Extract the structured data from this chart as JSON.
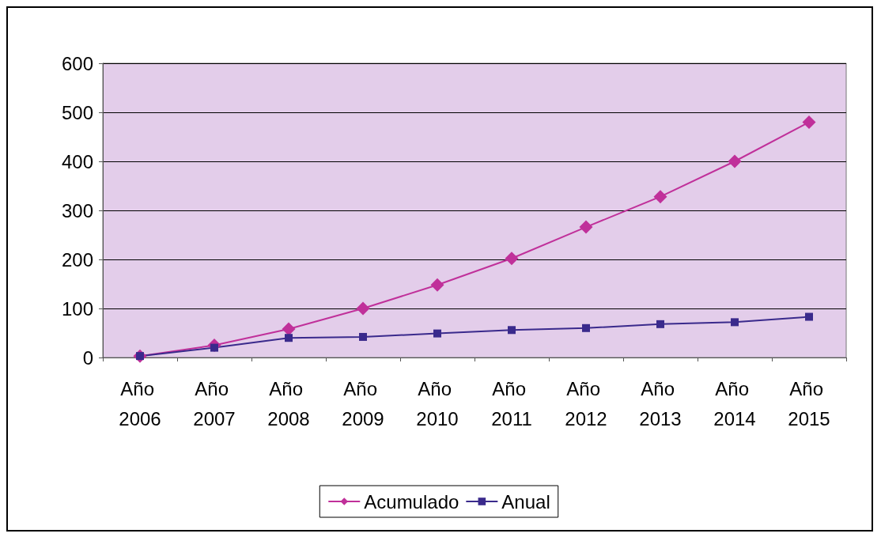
{
  "chart_data": {
    "type": "line",
    "categories": [
      "Año 2006",
      "Año 2007",
      "Año 2008",
      "Año 2009",
      "Año 2010",
      "Año 2011",
      "Año 2012",
      "Año 2013",
      "Año 2014",
      "Año 2015"
    ],
    "series": [
      {
        "name": "Acumulado",
        "color": "#c0309a",
        "marker": "diamond",
        "values": [
          3,
          25,
          58,
          100,
          148,
          202,
          266,
          328,
          400,
          480
        ]
      },
      {
        "name": "Anual",
        "color": "#3a2a8c",
        "marker": "square",
        "values": [
          3,
          20,
          40,
          42,
          49,
          56,
          60,
          68,
          72,
          83
        ]
      }
    ],
    "ylim": [
      0,
      600
    ],
    "yticks": [
      0,
      100,
      200,
      300,
      400,
      500,
      600
    ],
    "grid": "y",
    "legend": "bottom",
    "line_style": "solid"
  }
}
